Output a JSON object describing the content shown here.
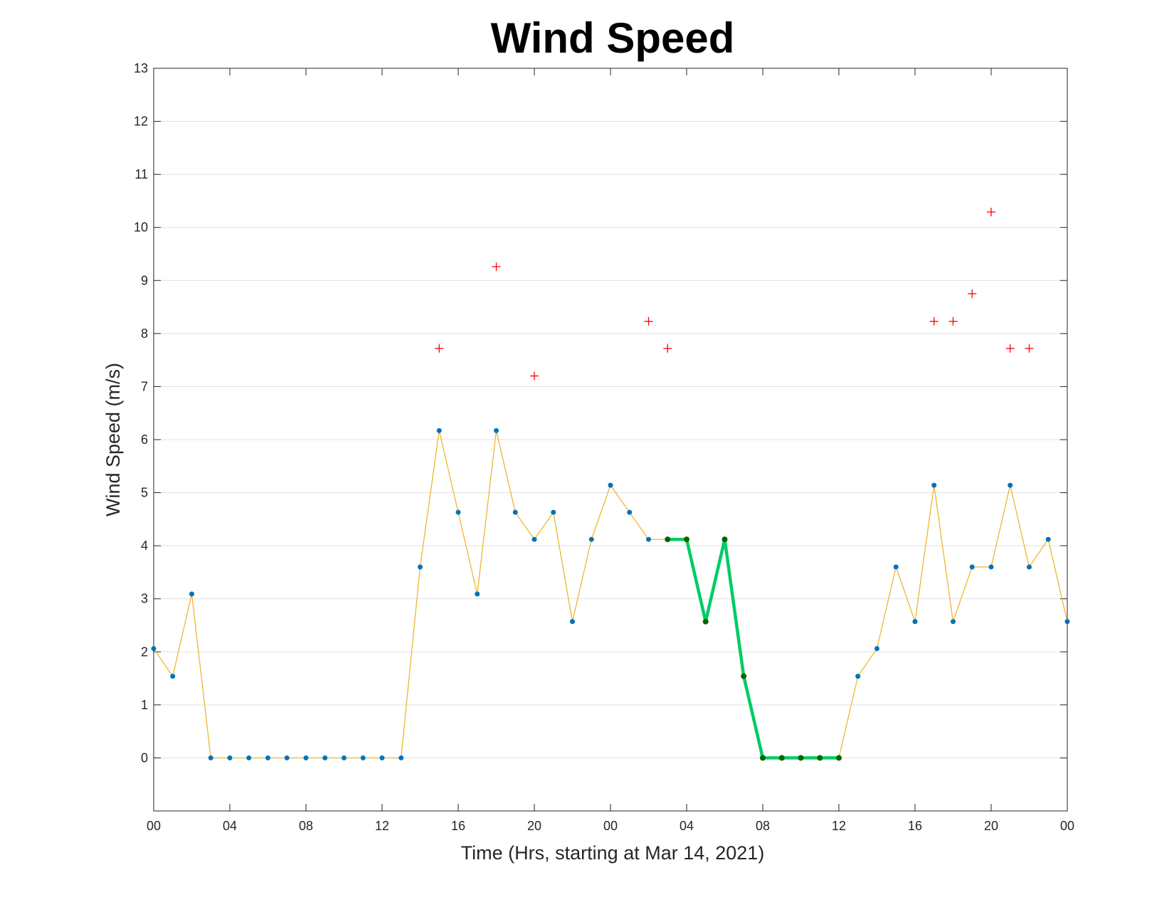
{
  "chart_data": {
    "type": "line",
    "title": "Wind Speed",
    "xlabel": "Time (Hrs, starting at Mar 14, 2021)",
    "ylabel": "Wind Speed (m/s)",
    "xlim": [
      0,
      48
    ],
    "ylim": [
      -1,
      13
    ],
    "x_ticks": [
      {
        "x": 0,
        "label": "00"
      },
      {
        "x": 4,
        "label": "04"
      },
      {
        "x": 8,
        "label": "08"
      },
      {
        "x": 12,
        "label": "12"
      },
      {
        "x": 16,
        "label": "16"
      },
      {
        "x": 20,
        "label": "20"
      },
      {
        "x": 24,
        "label": "00"
      },
      {
        "x": 28,
        "label": "04"
      },
      {
        "x": 32,
        "label": "08"
      },
      {
        "x": 36,
        "label": "12"
      },
      {
        "x": 40,
        "label": "16"
      },
      {
        "x": 44,
        "label": "20"
      },
      {
        "x": 48,
        "label": "00"
      }
    ],
    "y_ticks": [
      0,
      1,
      2,
      3,
      4,
      5,
      6,
      7,
      8,
      9,
      10,
      11,
      12,
      13
    ],
    "grid": true,
    "series": [
      {
        "kind": "line-markers",
        "color": "#EDB120",
        "marker_color": "#0072BD",
        "x": [
          0,
          1,
          2,
          3,
          4,
          5,
          6,
          7,
          8,
          9,
          10,
          11,
          12,
          13,
          14,
          15,
          16,
          17,
          18,
          19,
          20,
          21,
          22,
          23,
          24,
          25,
          26,
          27,
          28,
          29,
          30,
          31,
          32,
          33,
          34,
          35,
          36,
          37,
          38,
          39,
          40,
          41,
          42,
          43,
          44,
          45,
          46,
          47,
          48
        ],
        "y": [
          2.06,
          1.54,
          3.09,
          0,
          0,
          0,
          0,
          0,
          0,
          0,
          0,
          0,
          0,
          0,
          3.6,
          6.17,
          4.63,
          3.09,
          6.17,
          4.63,
          4.12,
          4.63,
          2.57,
          4.12,
          5.14,
          4.63,
          4.12,
          4.12,
          4.12,
          2.57,
          4.12,
          1.54,
          0,
          0,
          0,
          0,
          0,
          1.54,
          2.06,
          3.6,
          2.57,
          5.14,
          2.57,
          3.6,
          3.6,
          5.14,
          3.6,
          4.12,
          2.57
        ]
      },
      {
        "kind": "highlight",
        "color": "#00CC66",
        "marker_color": "#006400",
        "x": [
          27,
          28,
          29,
          30,
          31,
          32,
          33,
          34,
          35,
          36
        ],
        "y": [
          4.12,
          4.12,
          2.57,
          4.12,
          1.54,
          0,
          0,
          0,
          0,
          0
        ]
      },
      {
        "kind": "gust-markers",
        "color": "#FF0000",
        "x": [
          15,
          18,
          20,
          26,
          27,
          41,
          42,
          43,
          44,
          45,
          46
        ],
        "y": [
          7.72,
          9.26,
          7.2,
          8.23,
          7.72,
          8.23,
          8.23,
          8.75,
          10.29,
          7.72,
          7.72
        ]
      }
    ]
  }
}
